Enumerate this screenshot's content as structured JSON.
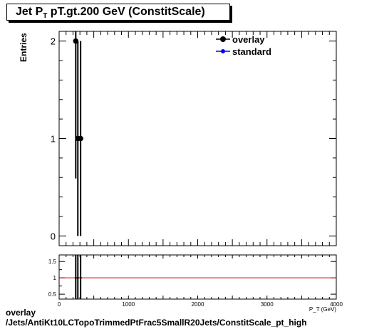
{
  "title": {
    "prefix": "Jet P",
    "sub": "T",
    "suffix": " pT.gt.200 GeV (ConstitScale)"
  },
  "footer": {
    "line1": "overlay",
    "line2": "/Jets/AntiKt10LCTopoTrimmedPtFrac5SmallR20Jets/ConstitScale_pt_high"
  },
  "colors": {
    "overlay": "#000000",
    "standard": "#0000ff",
    "ratio_line": "#cc0000"
  },
  "chart_data": [
    {
      "type": "scatter",
      "ylabel": "Entries",
      "xlim": [
        0,
        4000
      ],
      "ylim": [
        -0.1,
        2.1
      ],
      "yticks": [
        "0",
        "1",
        "2"
      ],
      "legend_position": "top-right",
      "series": [
        {
          "name": "overlay",
          "marker": "circle",
          "line": true,
          "x": [
            240,
            270,
            310
          ],
          "y": [
            2,
            1,
            1
          ],
          "yerr": [
            1.41,
            1,
            1
          ]
        },
        {
          "name": "standard",
          "marker": "circle",
          "line": true,
          "x": [],
          "y": []
        }
      ]
    },
    {
      "type": "line",
      "xlim": [
        0,
        4000
      ],
      "ylim": [
        0.35,
        1.7
      ],
      "xticks": [
        "0",
        "1000",
        "2000",
        "3000",
        "4000"
      ],
      "yticks": [
        "0.5",
        "1",
        "1.5"
      ],
      "xlabel": "P_{T} (GeV)",
      "reference_line": 1,
      "series": [
        {
          "name": "",
          "x": [
            240,
            270,
            310
          ],
          "y": [
            1,
            1,
            1
          ]
        }
      ]
    }
  ]
}
